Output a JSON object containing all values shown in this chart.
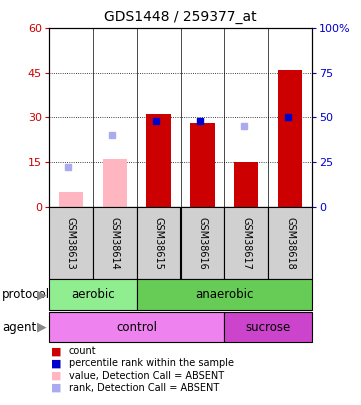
{
  "title": "GDS1448 / 259377_at",
  "samples": [
    "GSM38613",
    "GSM38614",
    "GSM38615",
    "GSM38616",
    "GSM38617",
    "GSM38618"
  ],
  "count_values": [
    null,
    null,
    31,
    28,
    15,
    46
  ],
  "count_absent": [
    5,
    16,
    null,
    null,
    null,
    null
  ],
  "rank_values_pct": [
    null,
    null,
    48,
    48,
    null,
    50
  ],
  "rank_absent_pct": [
    22,
    40,
    null,
    null,
    45,
    null
  ],
  "ylim_left": [
    0,
    60
  ],
  "ylim_right": [
    0,
    100
  ],
  "yticks_left": [
    0,
    15,
    30,
    45,
    60
  ],
  "yticks_right": [
    0,
    25,
    50,
    75,
    100
  ],
  "protocol_labels": [
    [
      "aerobic",
      0,
      2
    ],
    [
      "anaerobic",
      2,
      6
    ]
  ],
  "agent_labels": [
    [
      "control",
      0,
      4
    ],
    [
      "sucrose",
      4,
      6
    ]
  ],
  "aerobic_color": "#90EE90",
  "anaerobic_color": "#66CC55",
  "control_color": "#EE82EE",
  "sucrose_color": "#CC44CC",
  "bar_color_present": "#CC0000",
  "bar_color_absent": "#FFB6C1",
  "dot_color_present": "#0000CC",
  "dot_color_absent": "#AAAAEE",
  "left_tick_color": "#CC0000",
  "right_tick_color": "#0000CC",
  "legend_items": [
    {
      "color": "#CC0000",
      "label": "count"
    },
    {
      "color": "#0000CC",
      "label": "percentile rank within the sample"
    },
    {
      "color": "#FFB6C1",
      "label": "value, Detection Call = ABSENT"
    },
    {
      "color": "#AAAAEE",
      "label": "rank, Detection Call = ABSENT"
    }
  ]
}
